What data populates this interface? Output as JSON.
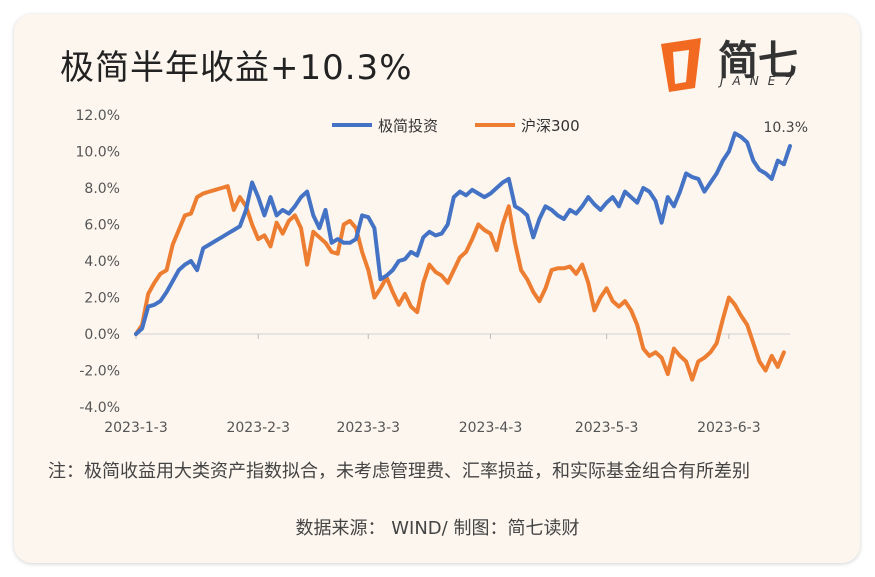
{
  "title": "极简半年收益+10.3%",
  "logo": {
    "text": "简七",
    "sub": "JANE7"
  },
  "note": "注：极简收益用大类资产指数拟合，未考虑管理费、汇率损益，和实际基金组合有所差别",
  "source": "数据来源： WIND/ 制图：简七读财",
  "colors": {
    "series1": "#4472c4",
    "series2": "#ed7d31",
    "logo": "#f26a21"
  },
  "chart_data": {
    "type": "line",
    "yticks": [
      "12.0%",
      "10.0%",
      "8.0%",
      "6.0%",
      "4.0%",
      "2.0%",
      "0.0%",
      "-2.0%",
      "-4.0%"
    ],
    "ylim": [
      -4,
      12
    ],
    "xticks": [
      "2023-1-3",
      "2023-2-3",
      "2023-3-3",
      "2023-4-3",
      "2023-5-3",
      "2023-6-3"
    ],
    "xtick_index": [
      0,
      20,
      38,
      58,
      77,
      97
    ],
    "legend": "top-center",
    "end_label": "10.3%",
    "series": [
      {
        "name": "极简投资",
        "values": [
          0,
          0.3,
          1.5,
          1.6,
          1.8,
          2.3,
          2.9,
          3.5,
          3.8,
          4.0,
          3.5,
          4.7,
          4.9,
          5.1,
          5.3,
          5.5,
          5.7,
          5.9,
          6.8,
          8.3,
          7.5,
          6.5,
          7.5,
          6.5,
          6.8,
          6.6,
          7.0,
          7.5,
          7.8,
          6.5,
          5.8,
          6.8,
          5.0,
          5.2,
          5.0,
          5.0,
          5.2,
          6.5,
          6.4,
          5.8,
          3.0,
          3.2,
          3.5,
          4.0,
          4.1,
          4.5,
          4.3,
          5.3,
          5.6,
          5.4,
          5.5,
          6.0,
          7.5,
          7.8,
          7.6,
          7.9,
          7.7,
          7.5,
          7.7,
          8.0,
          8.3,
          8.5,
          7.0,
          6.8,
          6.5,
          5.3,
          6.3,
          7.0,
          6.8,
          6.5,
          6.3,
          6.8,
          6.6,
          7.0,
          7.5,
          7.1,
          6.8,
          7.2,
          7.5,
          7.0,
          7.8,
          7.5,
          7.2,
          8.0,
          7.8,
          7.3,
          6.1,
          7.5,
          7.0,
          7.8,
          8.8,
          8.6,
          8.5,
          7.8,
          8.3,
          8.8,
          9.5,
          10.0,
          11.0,
          10.8,
          10.5,
          9.5,
          9.0,
          8.8,
          8.5,
          9.5,
          9.3,
          10.3
        ]
      },
      {
        "name": "沪深300",
        "values": [
          0,
          0.5,
          2.2,
          2.8,
          3.3,
          3.5,
          4.9,
          5.7,
          6.5,
          6.6,
          7.5,
          7.7,
          7.8,
          7.9,
          8.0,
          8.1,
          6.8,
          7.5,
          7.0,
          6.0,
          5.2,
          5.4,
          4.8,
          6.1,
          5.5,
          6.2,
          6.5,
          5.8,
          3.8,
          5.6,
          5.3,
          5.0,
          4.5,
          4.4,
          6.0,
          6.2,
          5.8,
          4.5,
          3.5,
          2.0,
          2.5,
          3.1,
          2.3,
          1.6,
          2.2,
          1.5,
          1.2,
          2.8,
          3.8,
          3.4,
          3.2,
          2.8,
          3.5,
          4.2,
          4.5,
          5.2,
          6.0,
          5.7,
          5.5,
          4.6,
          6.0,
          7.0,
          5.0,
          3.5,
          3.0,
          2.3,
          1.8,
          2.5,
          3.5,
          3.6,
          3.6,
          3.7,
          3.3,
          3.8,
          2.8,
          1.3,
          2.0,
          2.5,
          1.8,
          1.5,
          1.8,
          1.3,
          0.5,
          -0.8,
          -1.2,
          -1.0,
          -1.3,
          -2.2,
          -0.8,
          -1.2,
          -1.5,
          -2.5,
          -1.5,
          -1.3,
          -1.0,
          -0.5,
          0.8,
          2.0,
          1.6,
          1.0,
          0.5,
          -0.5,
          -1.5,
          -2.0,
          -1.2,
          -1.8,
          -1.0
        ]
      }
    ]
  }
}
